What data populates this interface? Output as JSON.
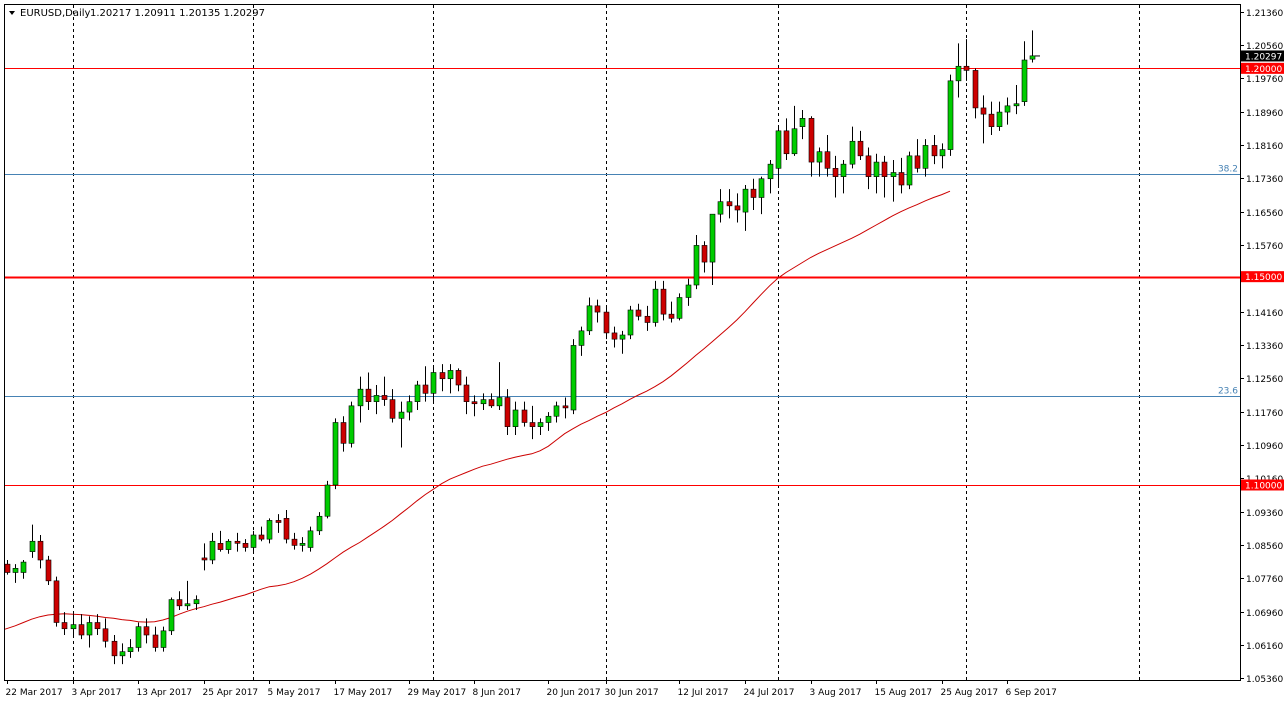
{
  "header": {
    "symbol": "EURUSD,Daily",
    "ohlc": "1.20217 1.20911 1.20135 1.20297"
  },
  "colors": {
    "background": "#ffffff",
    "bull_body": "#00cc00",
    "bear_body": "#cc0000",
    "wick": "#000000",
    "moving_average": "#cc0000",
    "level_line": "#ff0000",
    "fib_line": "#4682b4",
    "current_price_label_bg": "#000000",
    "level_label_bg": "#ff0000",
    "fib_text": "#4682b4"
  },
  "chart_data": {
    "type": "candlestick",
    "title": "",
    "ylim": [
      1.0532,
      1.2152
    ],
    "y_ticks": [
      "1.21360",
      "1.20560",
      "1.19760",
      "1.18960",
      "1.18160",
      "1.17360",
      "1.16560",
      "1.15760",
      "1.14960",
      "1.14160",
      "1.13360",
      "1.12560",
      "1.11760",
      "1.10960",
      "1.10160",
      "1.09360",
      "1.08560",
      "1.07760",
      "1.06960",
      "1.06160",
      "1.05360"
    ],
    "x_tick_labels": [
      "22 Mar 2017",
      "3 Apr 2017",
      "13 Apr 2017",
      "25 Apr 2017",
      "5 May 2017",
      "17 May 2017",
      "29 May 2017",
      "8 Jun 2017",
      "20 Jun 2017",
      "30 Jun 2017",
      "12 Jul 2017",
      "24 Jul 2017",
      "3 Aug 2017",
      "15 Aug 2017",
      "25 Aug 2017",
      "6 Sep 2017"
    ],
    "x_tick_bar_index": [
      0,
      8,
      16,
      24,
      32,
      40,
      49,
      57,
      66,
      73,
      82,
      90,
      98,
      106,
      114,
      122
    ],
    "period_separators_bar_index": [
      8,
      30,
      52,
      73,
      94,
      117,
      138
    ],
    "current_price": "1.20297",
    "horizontal_levels": [
      {
        "value": 1.2,
        "label": "1.20000",
        "thick": false
      },
      {
        "value": 1.15,
        "label": "1.15000",
        "thick": true
      },
      {
        "value": 1.1,
        "label": "1.10000",
        "thick": false
      }
    ],
    "fib_levels": [
      {
        "value": 1.1746,
        "label": "38.2"
      },
      {
        "value": 1.1214,
        "label": "23.6"
      }
    ],
    "ohlc": [
      [
        1.081,
        1.082,
        1.0785,
        1.079
      ],
      [
        1.079,
        1.081,
        1.0765,
        1.08
      ],
      [
        1.079,
        1.082,
        1.0775,
        1.0815
      ],
      [
        1.084,
        1.0905,
        1.0825,
        1.0865
      ],
      [
        1.0865,
        1.088,
        1.08,
        1.082
      ],
      [
        1.082,
        1.083,
        1.076,
        1.077
      ],
      [
        1.077,
        1.078,
        1.066,
        1.067
      ],
      [
        1.067,
        1.0695,
        1.064,
        1.0655
      ],
      [
        1.0655,
        1.069,
        1.064,
        1.0665
      ],
      [
        1.0665,
        1.069,
        1.063,
        1.064
      ],
      [
        1.064,
        1.0685,
        1.061,
        1.067
      ],
      [
        1.067,
        1.069,
        1.064,
        1.0655
      ],
      [
        1.0655,
        1.068,
        1.061,
        1.0625
      ],
      [
        1.0625,
        1.064,
        1.057,
        1.059
      ],
      [
        1.059,
        1.062,
        1.057,
        1.06
      ],
      [
        1.06,
        1.063,
        1.0585,
        1.061
      ],
      [
        1.061,
        1.067,
        1.06,
        1.066
      ],
      [
        1.066,
        1.068,
        1.062,
        1.064
      ],
      [
        1.064,
        1.066,
        1.06,
        1.061
      ],
      [
        1.061,
        1.066,
        1.06,
        1.065
      ],
      [
        1.065,
        1.073,
        1.064,
        1.0725
      ],
      [
        1.0725,
        1.0745,
        1.07,
        1.071
      ],
      [
        1.071,
        1.077,
        1.07,
        1.0715
      ],
      [
        1.0715,
        1.0735,
        1.07,
        1.0725
      ],
      [
        1.0825,
        1.086,
        1.0795,
        1.082
      ],
      [
        1.082,
        1.0885,
        1.081,
        1.0865
      ],
      [
        1.086,
        1.089,
        1.084,
        1.0845
      ],
      [
        1.0845,
        1.087,
        1.0835,
        1.0865
      ],
      [
        1.0865,
        1.0885,
        1.084,
        1.086
      ],
      [
        1.086,
        1.087,
        1.084,
        1.085
      ],
      [
        1.085,
        1.089,
        1.084,
        1.088
      ],
      [
        1.088,
        1.09,
        1.0865,
        1.087
      ],
      [
        1.087,
        1.092,
        1.086,
        1.0915
      ],
      [
        1.0915,
        1.093,
        1.0885,
        1.091
      ],
      [
        1.092,
        1.094,
        1.086,
        1.087
      ],
      [
        1.087,
        1.0885,
        1.0845,
        1.0855
      ],
      [
        1.0855,
        1.0875,
        1.084,
        1.086
      ],
      [
        1.085,
        1.09,
        1.084,
        1.089
      ],
      [
        1.089,
        1.0935,
        1.088,
        1.0925
      ],
      [
        1.0925,
        1.101,
        1.092,
        1.1
      ],
      [
        1.1,
        1.116,
        1.099,
        1.115
      ],
      [
        1.115,
        1.1165,
        1.108,
        1.11
      ],
      [
        1.11,
        1.12,
        1.109,
        1.119
      ],
      [
        1.119,
        1.126,
        1.115,
        1.123
      ],
      [
        1.123,
        1.127,
        1.118,
        1.12
      ],
      [
        1.12,
        1.124,
        1.117,
        1.1215
      ],
      [
        1.1215,
        1.126,
        1.119,
        1.1205
      ],
      [
        1.1205,
        1.123,
        1.115,
        1.116
      ],
      [
        1.116,
        1.12,
        1.109,
        1.1175
      ],
      [
        1.1175,
        1.1215,
        1.1155,
        1.12
      ],
      [
        1.12,
        1.125,
        1.118,
        1.124
      ],
      [
        1.124,
        1.1285,
        1.12,
        1.122
      ],
      [
        1.122,
        1.1285,
        1.12,
        1.127
      ],
      [
        1.127,
        1.129,
        1.1225,
        1.1255
      ],
      [
        1.1255,
        1.129,
        1.122,
        1.1275
      ],
      [
        1.1275,
        1.128,
        1.1225,
        1.124
      ],
      [
        1.124,
        1.126,
        1.117,
        1.12
      ],
      [
        1.12,
        1.1215,
        1.1165,
        1.1195
      ],
      [
        1.1195,
        1.122,
        1.118,
        1.1205
      ],
      [
        1.1205,
        1.122,
        1.1185,
        1.119
      ],
      [
        1.119,
        1.1295,
        1.118,
        1.121
      ],
      [
        1.121,
        1.123,
        1.112,
        1.114
      ],
      [
        1.114,
        1.12,
        1.112,
        1.118
      ],
      [
        1.118,
        1.12,
        1.114,
        1.115
      ],
      [
        1.115,
        1.119,
        1.111,
        1.114
      ],
      [
        1.114,
        1.116,
        1.112,
        1.115
      ],
      [
        1.115,
        1.1175,
        1.113,
        1.1165
      ],
      [
        1.1165,
        1.12,
        1.115,
        1.119
      ],
      [
        1.119,
        1.121,
        1.116,
        1.1185
      ],
      [
        1.118,
        1.135,
        1.117,
        1.1335
      ],
      [
        1.1335,
        1.138,
        1.131,
        1.137
      ],
      [
        1.137,
        1.145,
        1.136,
        1.143
      ],
      [
        1.143,
        1.1445,
        1.139,
        1.1415
      ],
      [
        1.1415,
        1.143,
        1.135,
        1.1365
      ],
      [
        1.1365,
        1.138,
        1.133,
        1.135
      ],
      [
        1.135,
        1.137,
        1.1315,
        1.136
      ],
      [
        1.136,
        1.143,
        1.135,
        1.142
      ],
      [
        1.142,
        1.1435,
        1.1395,
        1.1405
      ],
      [
        1.1405,
        1.143,
        1.137,
        1.139
      ],
      [
        1.139,
        1.149,
        1.138,
        1.147
      ],
      [
        1.147,
        1.149,
        1.1395,
        1.141
      ],
      [
        1.141,
        1.144,
        1.139,
        1.14
      ],
      [
        1.14,
        1.146,
        1.1395,
        1.145
      ],
      [
        1.145,
        1.1495,
        1.143,
        1.148
      ],
      [
        1.148,
        1.16,
        1.147,
        1.1575
      ],
      [
        1.1575,
        1.1585,
        1.151,
        1.1535
      ],
      [
        1.1535,
        1.165,
        1.148,
        1.165
      ],
      [
        1.165,
        1.171,
        1.163,
        1.168
      ],
      [
        1.168,
        1.171,
        1.164,
        1.167
      ],
      [
        1.167,
        1.17,
        1.163,
        1.166
      ],
      [
        1.1655,
        1.172,
        1.161,
        1.171
      ],
      [
        1.171,
        1.1735,
        1.166,
        1.169
      ],
      [
        1.169,
        1.174,
        1.165,
        1.1735
      ],
      [
        1.1735,
        1.178,
        1.17,
        1.177
      ],
      [
        1.176,
        1.186,
        1.172,
        1.185
      ],
      [
        1.185,
        1.188,
        1.178,
        1.1795
      ],
      [
        1.1795,
        1.191,
        1.179,
        1.1855
      ],
      [
        1.186,
        1.19,
        1.183,
        1.188
      ],
      [
        1.188,
        1.1885,
        1.174,
        1.1775
      ],
      [
        1.1775,
        1.181,
        1.174,
        1.18
      ],
      [
        1.18,
        1.184,
        1.174,
        1.176
      ],
      [
        1.176,
        1.179,
        1.169,
        1.174
      ],
      [
        1.174,
        1.178,
        1.17,
        1.177
      ],
      [
        1.177,
        1.186,
        1.176,
        1.1825
      ],
      [
        1.1825,
        1.185,
        1.178,
        1.179
      ],
      [
        1.179,
        1.181,
        1.171,
        1.174
      ],
      [
        1.174,
        1.1795,
        1.17,
        1.1775
      ],
      [
        1.1775,
        1.179,
        1.169,
        1.174
      ],
      [
        1.174,
        1.178,
        1.168,
        1.175
      ],
      [
        1.175,
        1.1785,
        1.17,
        1.172
      ],
      [
        1.172,
        1.18,
        1.171,
        1.179
      ],
      [
        1.179,
        1.183,
        1.175,
        1.176
      ],
      [
        1.176,
        1.183,
        1.174,
        1.1815
      ],
      [
        1.1815,
        1.184,
        1.177,
        1.179
      ],
      [
        1.179,
        1.182,
        1.176,
        1.1805
      ],
      [
        1.1805,
        1.1985,
        1.179,
        1.197
      ],
      [
        1.197,
        1.206,
        1.193,
        1.2005
      ],
      [
        1.2005,
        1.207,
        1.197,
        1.1995
      ],
      [
        1.1995,
        1.2,
        1.188,
        1.1905
      ],
      [
        1.1905,
        1.1935,
        1.182,
        1.189
      ],
      [
        1.189,
        1.192,
        1.184,
        1.186
      ],
      [
        1.186,
        1.192,
        1.185,
        1.1895
      ],
      [
        1.1895,
        1.193,
        1.1865,
        1.191
      ],
      [
        1.191,
        1.196,
        1.189,
        1.1915
      ],
      [
        1.192,
        1.2065,
        1.191,
        1.202
      ],
      [
        1.2022,
        1.2091,
        1.2014,
        1.203
      ]
    ],
    "moving_average": [
      1.0654,
      1.0662,
      1.067,
      1.0678,
      1.0684,
      1.0688,
      1.069,
      1.0691,
      1.069,
      1.0689,
      1.0687,
      1.0685,
      1.0682,
      1.068,
      1.0677,
      1.0675,
      1.0672,
      1.0671,
      1.0672,
      1.0676,
      1.0682,
      1.069,
      1.0697,
      1.0703,
      1.0708,
      1.0714,
      1.0719,
      1.0725,
      1.0731,
      1.0736,
      1.0743,
      1.075,
      1.0756,
      1.0758,
      1.0762,
      1.0768,
      1.0776,
      1.0786,
      1.0798,
      1.0811,
      1.0825,
      1.0839,
      1.0851,
      1.0862,
      1.0875,
      1.0888,
      1.0901,
      1.0915,
      1.0931,
      1.0946,
      1.0962,
      1.0977,
      1.099,
      1.1003,
      1.1014,
      1.1022,
      1.103,
      1.1038,
      1.1045,
      1.105,
      1.1056,
      1.1062,
      1.1067,
      1.1071,
      1.1075,
      1.1082,
      1.1093,
      1.1108,
      1.1123,
      1.1135,
      1.1146,
      1.1155,
      1.1165,
      1.1174,
      1.1185,
      1.1195,
      1.1206,
      1.1216,
      1.1225,
      1.1236,
      1.1248,
      1.1262,
      1.1278,
      1.1294,
      1.1311,
      1.1327,
      1.1344,
      1.1361,
      1.1378,
      1.1396,
      1.1416,
      1.1437,
      1.1458,
      1.1478,
      1.1496,
      1.151,
      1.1522,
      1.1534,
      1.1546,
      1.1556,
      1.1565,
      1.1574,
      1.1583,
      1.1592,
      1.1602,
      1.1613,
      1.1624,
      1.1635,
      1.1646,
      1.1656,
      1.1665,
      1.1673,
      1.1682,
      1.169,
      1.1697,
      1.1705
    ]
  }
}
